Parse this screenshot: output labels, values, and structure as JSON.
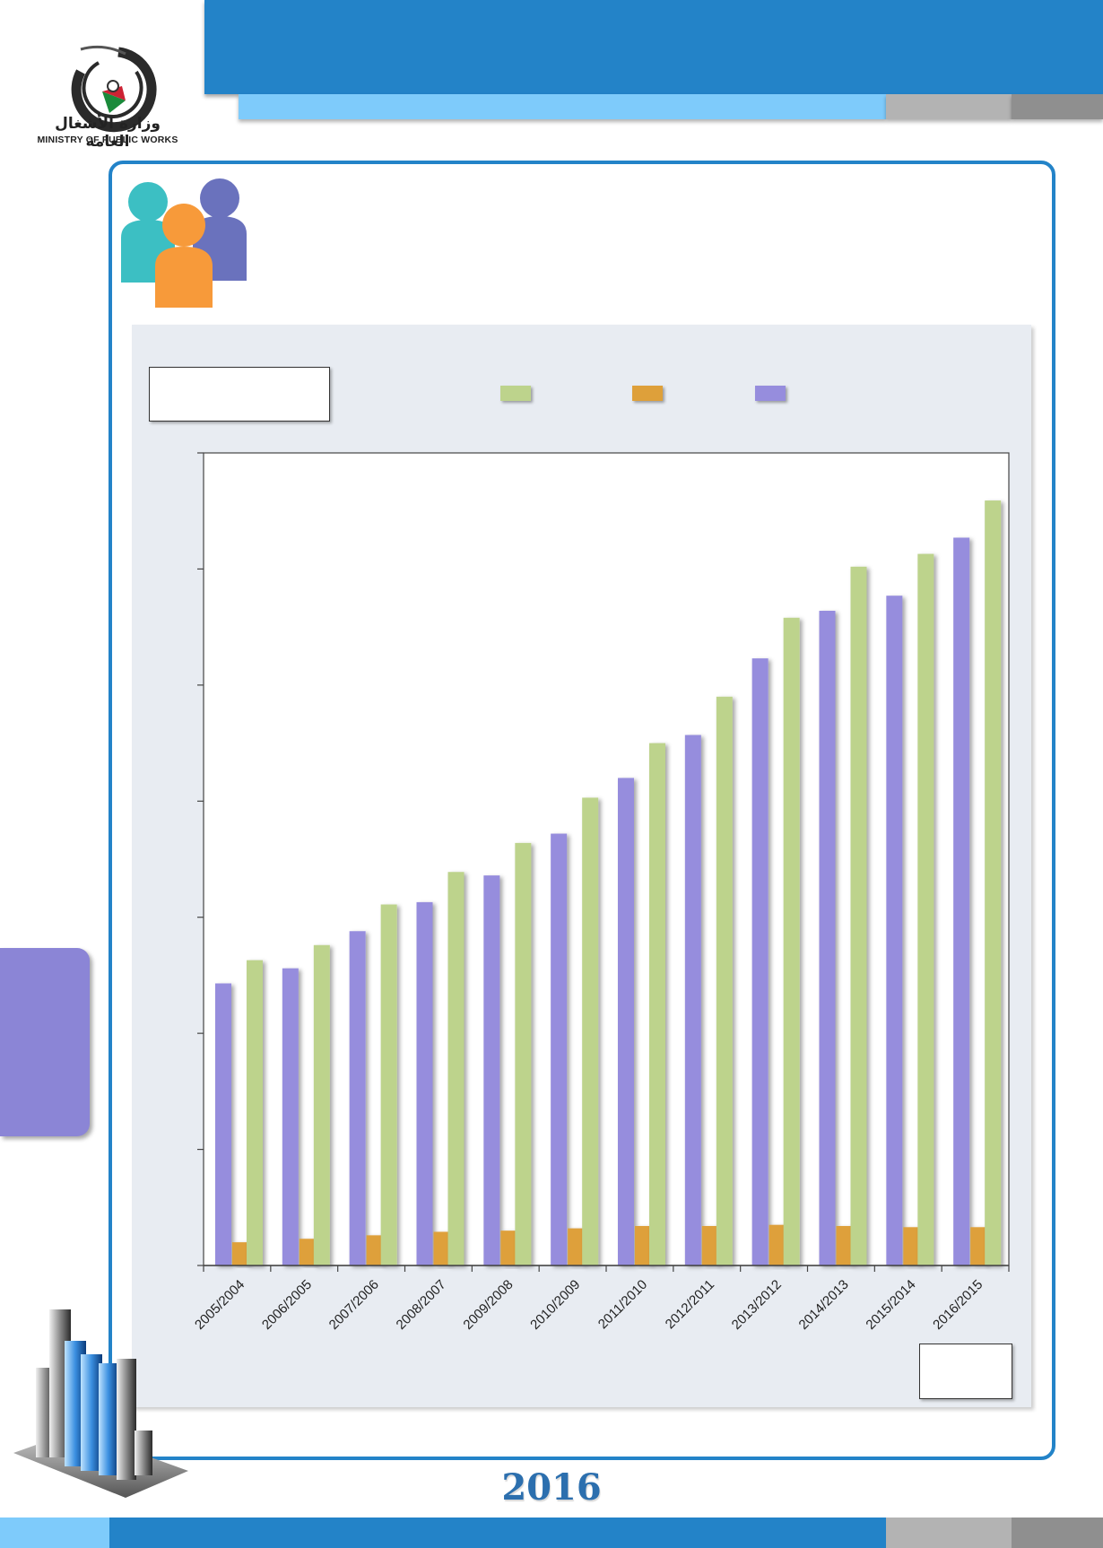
{
  "header": {
    "logo_ar": "وزارة الأشغال العامة",
    "logo_en": "MINISTRY OF PUBLIC WORKS",
    "colors": {
      "main_blue": "#2383c8",
      "light_blue": "#7ecbfb",
      "grey": "#b3b3b3",
      "dark_grey": "#8f8f8f"
    }
  },
  "icons": {
    "logo": "ministry-logo-icon",
    "people": "people-group-icon",
    "buildings": "bar-chart-buildings-icon"
  },
  "side_tab": {
    "color": "#8b85d6"
  },
  "footer": {
    "year": "2016"
  },
  "chart_data": {
    "type": "bar",
    "title": "",
    "xlabel": "",
    "ylabel": "",
    "categories": [
      "2005/2004",
      "2006/2005",
      "2007/2006",
      "2008/2007",
      "2009/2008",
      "2010/2009",
      "2011/2010",
      "2012/2011",
      "2013/2012",
      "2014/2013",
      "2015/2014",
      "2016/2015"
    ],
    "ylim": [
      0,
      7
    ],
    "ytick_count": 7,
    "grid": false,
    "legend_position": "top",
    "series": [
      {
        "color": "#968ddd",
        "values": [
          2.43,
          2.56,
          2.88,
          3.13,
          3.36,
          3.72,
          4.2,
          4.57,
          5.23,
          5.64,
          5.77,
          6.27
        ]
      },
      {
        "color": "#dea03a",
        "values": [
          0.2,
          0.23,
          0.26,
          0.29,
          0.3,
          0.32,
          0.34,
          0.34,
          0.35,
          0.34,
          0.33,
          0.33
        ]
      },
      {
        "color": "#bdd38c",
        "values": [
          2.63,
          2.76,
          3.11,
          3.39,
          3.64,
          4.03,
          4.5,
          4.9,
          5.58,
          6.02,
          6.13,
          6.59
        ]
      }
    ]
  }
}
